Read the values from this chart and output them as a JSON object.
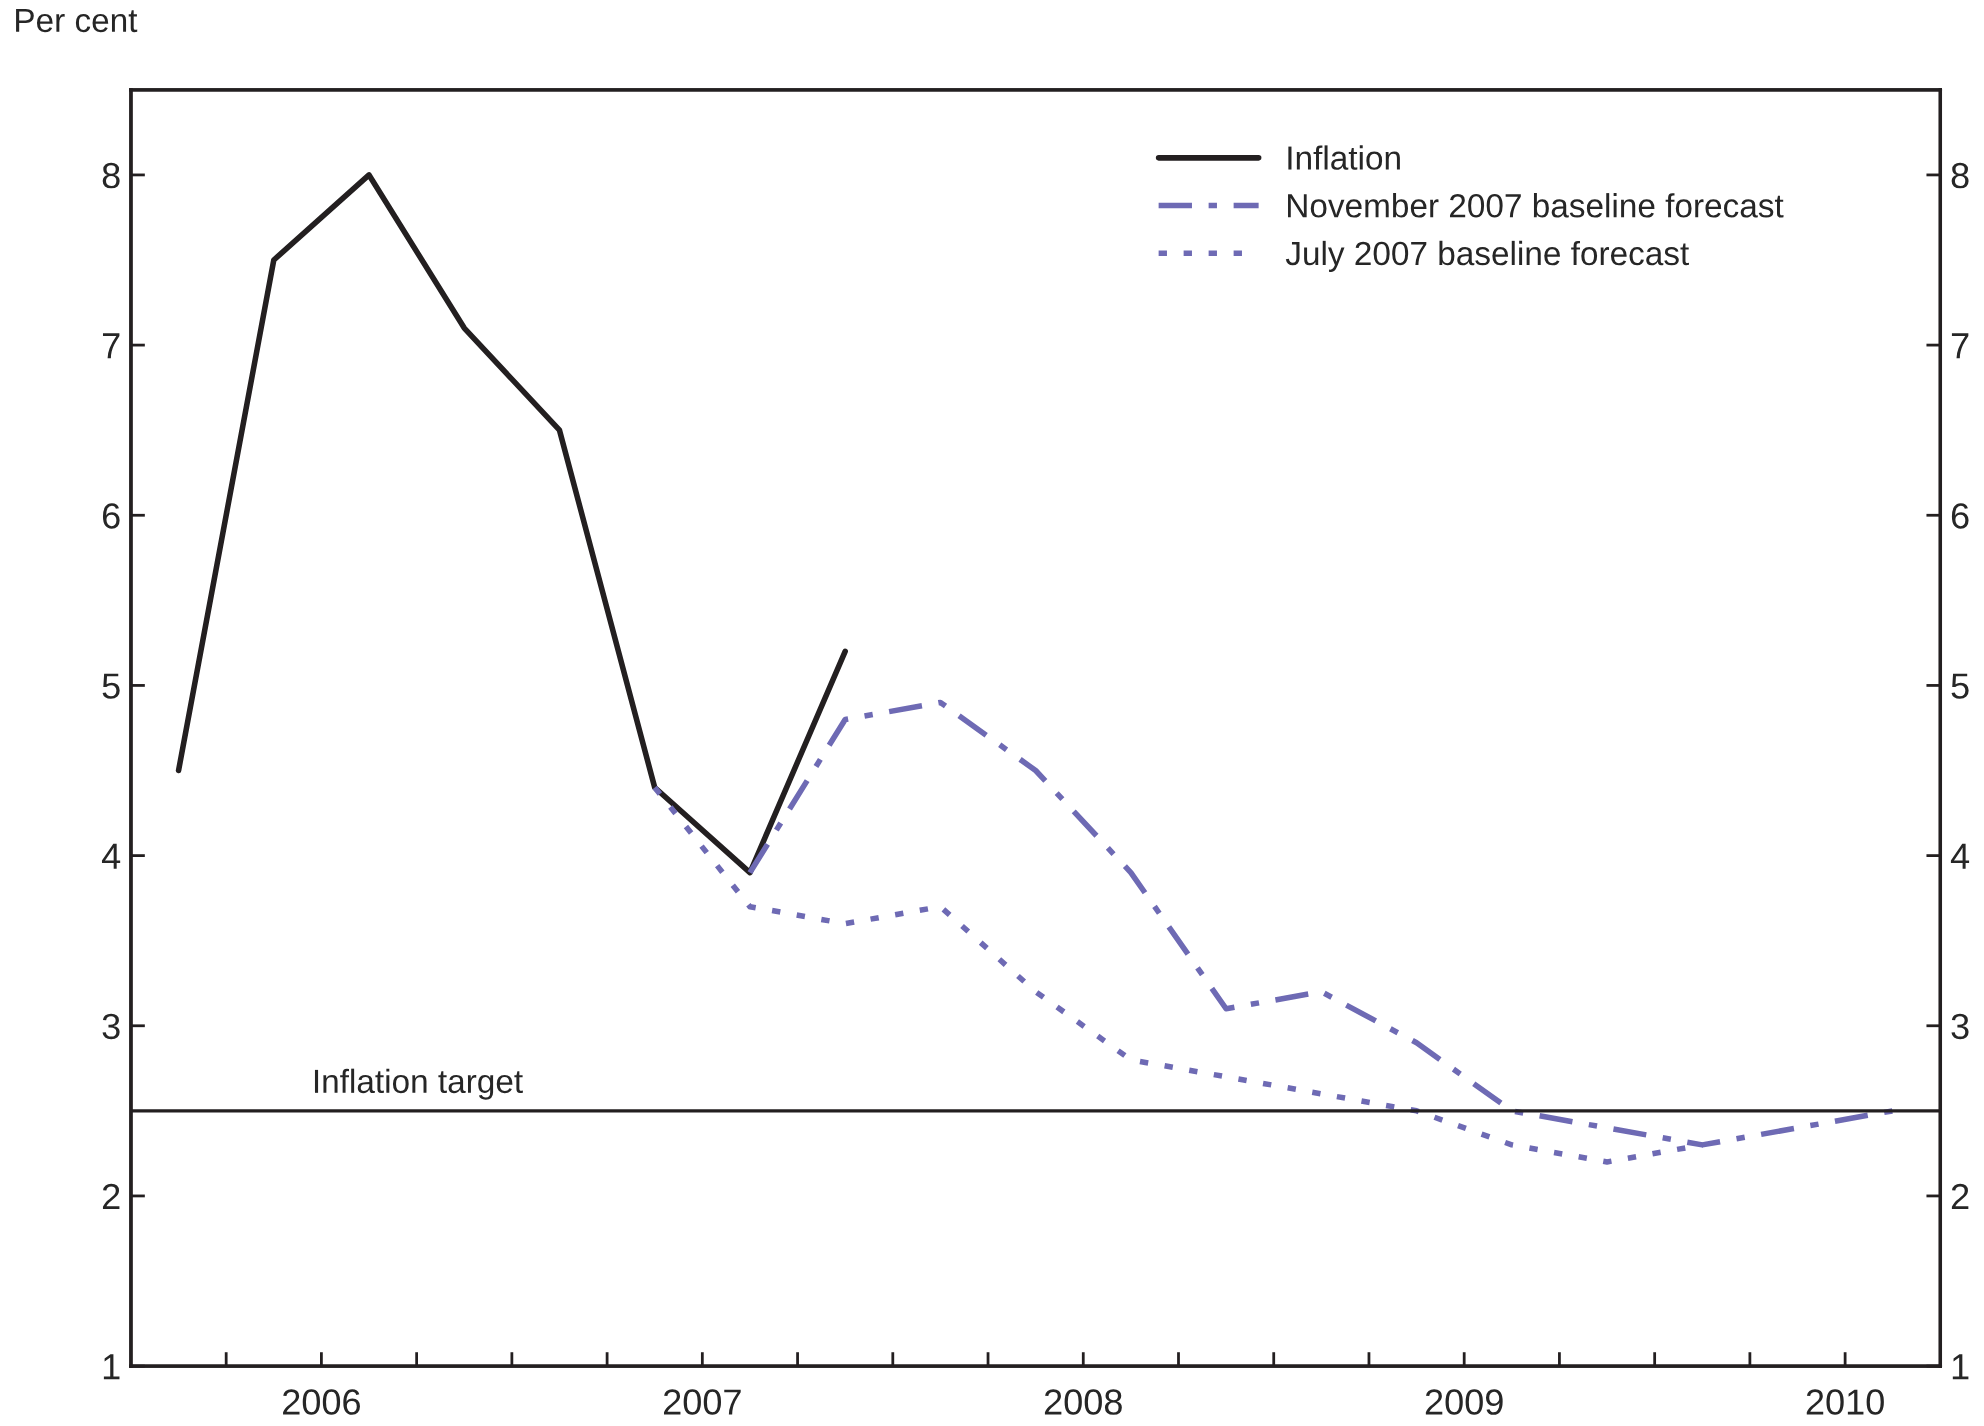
{
  "chart_data": {
    "type": "line",
    "ylabel": "Per cent",
    "xlim": [
      2006.0,
      2010.75
    ],
    "xticks": [
      {
        "value": 2006.25,
        "label": null
      },
      {
        "value": 2006.5,
        "label": "2006"
      },
      {
        "value": 2006.75,
        "label": null
      },
      {
        "value": 2007.0,
        "label": null
      },
      {
        "value": 2007.25,
        "label": null
      },
      {
        "value": 2007.5,
        "label": "2007"
      },
      {
        "value": 2007.75,
        "label": null
      },
      {
        "value": 2008.0,
        "label": null
      },
      {
        "value": 2008.25,
        "label": null
      },
      {
        "value": 2008.5,
        "label": "2008"
      },
      {
        "value": 2008.75,
        "label": null
      },
      {
        "value": 2009.0,
        "label": null
      },
      {
        "value": 2009.25,
        "label": null
      },
      {
        "value": 2009.5,
        "label": "2009"
      },
      {
        "value": 2009.75,
        "label": null
      },
      {
        "value": 2010.0,
        "label": null
      },
      {
        "value": 2010.25,
        "label": null
      },
      {
        "value": 2010.5,
        "label": "2010"
      }
    ],
    "ylim": [
      1,
      8.5
    ],
    "yticks": [
      1,
      2,
      3,
      4,
      5,
      6,
      7,
      8
    ],
    "y2lim": [
      1,
      8.5
    ],
    "y2ticks": [
      1,
      2,
      3,
      4,
      5,
      6,
      7,
      8
    ],
    "grid": false,
    "legend": "top right",
    "series": [
      {
        "name": "Inflation",
        "color": "#231f20",
        "line_style": "solid",
        "x": [
          2006.125,
          2006.375,
          2006.625,
          2006.875,
          2007.125,
          2007.375,
          2007.625,
          2007.875
        ],
        "values": [
          4.5,
          7.5,
          8.0,
          7.1,
          6.5,
          4.4,
          3.9,
          5.2
        ]
      },
      {
        "name": "November 2007 baseline forecast",
        "color": "#6e6ab4",
        "line_style": "dashdot",
        "x": [
          2007.625,
          2007.875,
          2008.125,
          2008.375,
          2008.625,
          2008.875,
          2009.125,
          2009.375,
          2009.625,
          2009.875,
          2010.125,
          2010.375,
          2010.625
        ],
        "values": [
          3.9,
          4.8,
          4.9,
          4.5,
          3.9,
          3.1,
          3.2,
          2.9,
          2.5,
          2.4,
          2.3,
          2.4,
          2.5
        ]
      },
      {
        "name": "July 2007 baseline forecast",
        "color": "#6e6ab4",
        "line_style": "dotted",
        "x": [
          2007.375,
          2007.625,
          2007.875,
          2008.125,
          2008.375,
          2008.625,
          2008.875,
          2009.125,
          2009.375,
          2009.625,
          2009.875,
          2010.125
        ],
        "values": [
          4.4,
          3.7,
          3.6,
          3.7,
          3.2,
          2.8,
          2.7,
          2.6,
          2.5,
          2.3,
          2.2,
          2.3
        ]
      }
    ],
    "ref_lines": [
      {
        "axis": "y",
        "value": 2.5,
        "label": "Inflation target",
        "color": "#231f20"
      }
    ]
  }
}
